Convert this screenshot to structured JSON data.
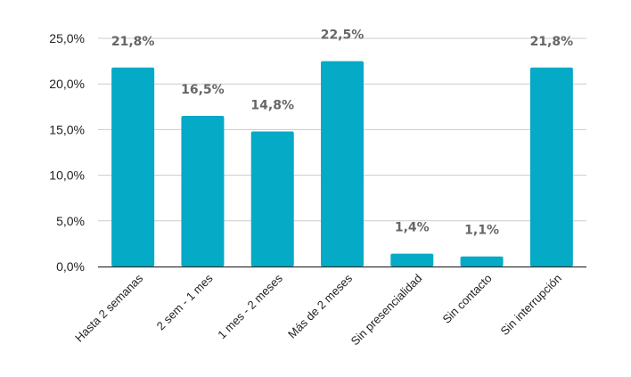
{
  "chart_data": {
    "type": "bar",
    "categories": [
      "Hasta 2 semanas",
      "2 sem - 1 mes",
      "1 mes - 2 meses",
      "Más de 2 meses",
      "Sin presencialidad",
      "Sin contacto",
      "Sin interrupción"
    ],
    "values": [
      21.8,
      16.5,
      14.8,
      22.5,
      1.4,
      1.1,
      21.8
    ],
    "data_labels": [
      "21,8%",
      "16,5%",
      "14,8%",
      "22,5%",
      "1,4%",
      "1,1%",
      "21,8%"
    ],
    "y_ticks": [
      0,
      5,
      10,
      15,
      20,
      25
    ],
    "y_tick_labels": [
      "0,0%",
      "5,0%",
      "10,0%",
      "15,0%",
      "20,0%",
      "25,0%"
    ],
    "ylim": [
      0,
      25
    ],
    "grid": true,
    "bar_color": "#05AAC6",
    "title": "",
    "xlabel": "",
    "ylabel": ""
  }
}
